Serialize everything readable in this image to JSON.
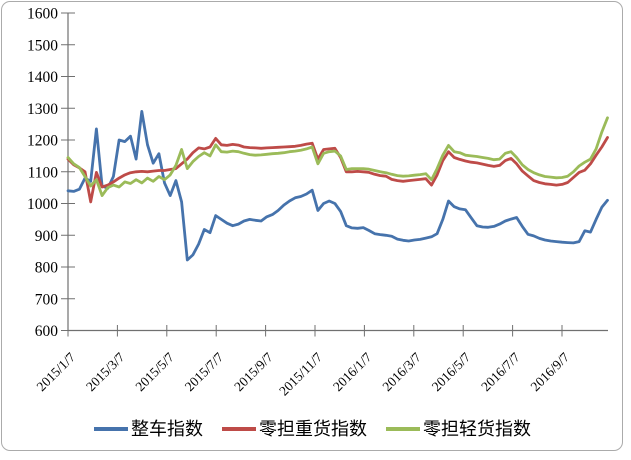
{
  "chart_data": {
    "type": "line",
    "title": "",
    "grid": false,
    "legend_position": "bottom",
    "plot_bg": "#ffffff",
    "axis_color": "#707070",
    "frame_color": "#ababab",
    "y_axis": {
      "min": 600,
      "max": 1600,
      "step": 100,
      "tick_labels": [
        "600",
        "700",
        "800",
        "900",
        "1000",
        "1100",
        "1200",
        "1300",
        "1400",
        "1500",
        "1600"
      ]
    },
    "x_axis": {
      "tick_labels": [
        "2015/1/7",
        "2015/3/7",
        "2015/5/7",
        "2015/7/7",
        "2015/9/7",
        "2015/11/7",
        "2016/1/7",
        "2016/3/7",
        "2016/5/7",
        "2016/7/7",
        "2016/9/7"
      ]
    },
    "x": [
      "2015/1/7",
      "2015/1/14",
      "2015/1/21",
      "2015/1/28",
      "2015/2/4",
      "2015/2/11",
      "2015/2/18",
      "2015/2/25",
      "2015/3/4",
      "2015/3/11",
      "2015/3/18",
      "2015/3/25",
      "2015/4/1",
      "2015/4/8",
      "2015/4/15",
      "2015/4/22",
      "2015/4/29",
      "2015/5/6",
      "2015/5/13",
      "2015/5/20",
      "2015/5/27",
      "2015/6/3",
      "2015/6/10",
      "2015/6/17",
      "2015/6/24",
      "2015/7/1",
      "2015/7/8",
      "2015/7/15",
      "2015/7/22",
      "2015/7/29",
      "2015/8/5",
      "2015/8/12",
      "2015/8/19",
      "2015/8/26",
      "2015/9/2",
      "2015/9/9",
      "2015/9/16",
      "2015/9/23",
      "2015/9/30",
      "2015/10/7",
      "2015/10/14",
      "2015/10/21",
      "2015/10/28",
      "2015/11/4",
      "2015/11/11",
      "2015/11/18",
      "2015/11/25",
      "2015/12/2",
      "2015/12/9",
      "2015/12/16",
      "2015/12/23",
      "2015/12/30",
      "2016/1/6",
      "2016/1/13",
      "2016/1/20",
      "2016/1/27",
      "2016/2/3",
      "2016/2/10",
      "2016/2/17",
      "2016/2/24",
      "2016/3/2",
      "2016/3/9",
      "2016/3/16",
      "2016/3/23",
      "2016/3/30",
      "2016/4/6",
      "2016/4/13",
      "2016/4/20",
      "2016/4/27",
      "2016/5/4",
      "2016/5/11",
      "2016/5/18",
      "2016/5/25",
      "2016/6/1",
      "2016/6/8",
      "2016/6/15",
      "2016/6/22",
      "2016/6/29",
      "2016/7/6",
      "2016/7/13",
      "2016/7/20",
      "2016/7/27",
      "2016/8/3",
      "2016/8/10",
      "2016/8/17",
      "2016/8/24",
      "2016/8/31",
      "2016/9/7",
      "2016/9/14",
      "2016/9/21",
      "2016/9/28",
      "2016/10/5",
      "2016/10/12",
      "2016/10/19",
      "2016/10/26",
      "2016/11/2"
    ],
    "series": [
      {
        "name": "整车指数",
        "color": "#4673AC",
        "values": [
          1040,
          1038,
          1045,
          1080,
          1070,
          1235,
          1055,
          1048,
          1085,
          1200,
          1195,
          1212,
          1140,
          1290,
          1185,
          1127,
          1157,
          1065,
          1025,
          1072,
          1005,
          822,
          838,
          872,
          918,
          908,
          962,
          950,
          938,
          930,
          935,
          945,
          950,
          947,
          945,
          958,
          965,
          978,
          995,
          1008,
          1018,
          1022,
          1030,
          1042,
          978,
          1000,
          1008,
          1000,
          975,
          930,
          923,
          922,
          924,
          915,
          905,
          902,
          900,
          897,
          888,
          884,
          882,
          885,
          887,
          891,
          895,
          905,
          950,
          1008,
          990,
          983,
          980,
          955,
          930,
          926,
          925,
          928,
          935,
          945,
          951,
          956,
          928,
          903,
          898,
          890,
          885,
          882,
          880,
          878,
          877,
          876,
          880,
          914,
          910,
          950,
          988,
          1010
        ]
      },
      {
        "name": "零担重货指数",
        "color": "#BE4B48",
        "values": [
          1140,
          1122,
          1112,
          1100,
          1005,
          1098,
          1052,
          1058,
          1068,
          1080,
          1090,
          1097,
          1100,
          1101,
          1100,
          1102,
          1104,
          1104,
          1107,
          1110,
          1125,
          1140,
          1160,
          1175,
          1172,
          1178,
          1205,
          1185,
          1183,
          1186,
          1184,
          1178,
          1176,
          1175,
          1174,
          1175,
          1176,
          1177,
          1178,
          1179,
          1180,
          1183,
          1187,
          1190,
          1140,
          1170,
          1172,
          1174,
          1145,
          1100,
          1100,
          1101,
          1100,
          1098,
          1092,
          1088,
          1086,
          1076,
          1072,
          1070,
          1072,
          1074,
          1076,
          1078,
          1058,
          1090,
          1135,
          1163,
          1145,
          1139,
          1134,
          1130,
          1128,
          1124,
          1120,
          1117,
          1120,
          1135,
          1142,
          1125,
          1102,
          1087,
          1072,
          1066,
          1062,
          1060,
          1058,
          1060,
          1066,
          1082,
          1098,
          1105,
          1125,
          1152,
          1178,
          1208
        ]
      },
      {
        "name": "零担轻货指数",
        "color": "#9BBB59",
        "values": [
          1145,
          1125,
          1113,
          1085,
          1055,
          1075,
          1025,
          1050,
          1058,
          1052,
          1068,
          1063,
          1075,
          1065,
          1080,
          1070,
          1085,
          1075,
          1090,
          1120,
          1170,
          1110,
          1132,
          1148,
          1160,
          1150,
          1185,
          1163,
          1162,
          1165,
          1163,
          1158,
          1154,
          1152,
          1153,
          1155,
          1157,
          1158,
          1160,
          1163,
          1165,
          1168,
          1172,
          1178,
          1125,
          1158,
          1163,
          1165,
          1150,
          1107,
          1110,
          1110,
          1110,
          1108,
          1104,
          1100,
          1097,
          1092,
          1088,
          1086,
          1087,
          1089,
          1091,
          1094,
          1075,
          1110,
          1152,
          1183,
          1163,
          1160,
          1152,
          1150,
          1148,
          1145,
          1142,
          1138,
          1140,
          1158,
          1163,
          1145,
          1122,
          1107,
          1097,
          1090,
          1085,
          1083,
          1081,
          1082,
          1086,
          1100,
          1118,
          1130,
          1140,
          1172,
          1225,
          1270
        ]
      }
    ]
  }
}
